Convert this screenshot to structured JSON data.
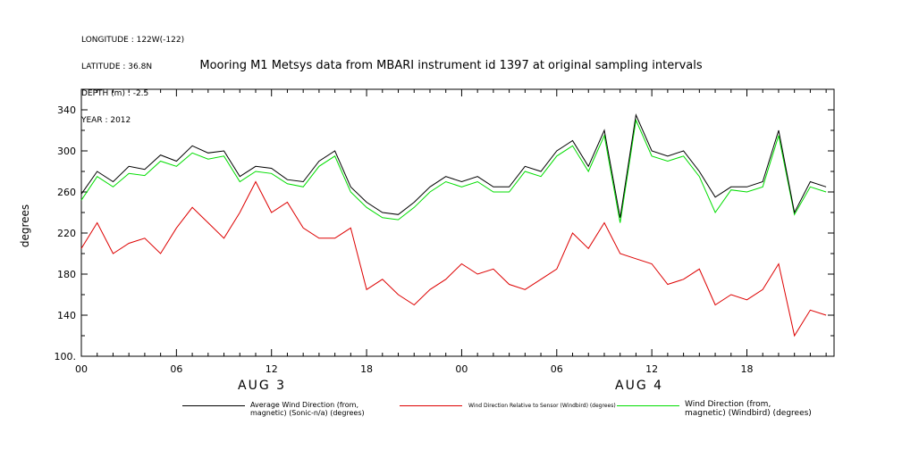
{
  "header": {
    "longitude": "LONGITUDE : 122W(-122)",
    "latitude": "LATITUDE : 36.8N",
    "depth": "DEPTH (m) : -2.5",
    "year": "YEAR : 2012"
  },
  "colors": {
    "s1": "#000000",
    "s2": "#dd0000",
    "s3": "#00dd00"
  },
  "chart_data": {
    "type": "line",
    "title": "Mooring M1 Metsys data from MBARI instrument id 1397 at original sampling intervals",
    "xlabel": "",
    "ylabel": "degrees",
    "ylim": [
      100,
      360
    ],
    "xlim": [
      "2012-08-03 00:00",
      "2012-08-04 23:30"
    ],
    "y_ticks": [
      "100.",
      "140",
      "180",
      "220",
      "260",
      "300",
      "340"
    ],
    "x_ticks": [
      "00",
      "06",
      "12",
      "18",
      "00",
      "06",
      "12",
      "18"
    ],
    "day_labels": [
      "AUG  3",
      "AUG  4"
    ],
    "grid": false,
    "legend": "bottom",
    "x": [
      "2012-08-03 00:00",
      "2012-08-03 01:00",
      "2012-08-03 02:00",
      "2012-08-03 03:00",
      "2012-08-03 04:00",
      "2012-08-03 05:00",
      "2012-08-03 06:00",
      "2012-08-03 07:00",
      "2012-08-03 08:00",
      "2012-08-03 09:00",
      "2012-08-03 10:00",
      "2012-08-03 11:00",
      "2012-08-03 12:00",
      "2012-08-03 13:00",
      "2012-08-03 14:00",
      "2012-08-03 15:00",
      "2012-08-03 16:00",
      "2012-08-03 17:00",
      "2012-08-03 18:00",
      "2012-08-03 19:00",
      "2012-08-03 20:00",
      "2012-08-03 21:00",
      "2012-08-03 22:00",
      "2012-08-03 23:00",
      "2012-08-04 00:00",
      "2012-08-04 01:00",
      "2012-08-04 02:00",
      "2012-08-04 03:00",
      "2012-08-04 04:00",
      "2012-08-04 05:00",
      "2012-08-04 06:00",
      "2012-08-04 07:00",
      "2012-08-04 08:00",
      "2012-08-04 09:00",
      "2012-08-04 10:00",
      "2012-08-04 11:00",
      "2012-08-04 12:00",
      "2012-08-04 13:00",
      "2012-08-04 14:00",
      "2012-08-04 15:00",
      "2012-08-04 16:00",
      "2012-08-04 17:00",
      "2012-08-04 18:00",
      "2012-08-04 19:00",
      "2012-08-04 20:00",
      "2012-08-04 21:00",
      "2012-08-04 22:00",
      "2012-08-04 23:00"
    ],
    "series": [
      {
        "name": "Average Wind Direction (from, magnetic) (Sonic-n/a) (degrees)",
        "values": [
          258,
          280,
          270,
          285,
          282,
          296,
          290,
          305,
          298,
          300,
          275,
          285,
          283,
          272,
          270,
          290,
          300,
          265,
          250,
          240,
          238,
          250,
          265,
          275,
          270,
          275,
          265,
          265,
          285,
          280,
          300,
          310,
          285,
          320,
          235,
          335,
          300,
          295,
          300,
          280,
          255,
          265,
          265,
          270,
          320,
          240,
          270,
          265
        ]
      },
      {
        "name": "Wind Direction Relative to Sensor (Windbird) (degrees)",
        "values": [
          205,
          230,
          200,
          210,
          215,
          200,
          225,
          245,
          230,
          215,
          240,
          270,
          240,
          250,
          225,
          215,
          215,
          225,
          165,
          175,
          160,
          150,
          165,
          175,
          190,
          180,
          185,
          170,
          165,
          175,
          185,
          220,
          205,
          230,
          200,
          195,
          190,
          170,
          175,
          185,
          150,
          160,
          155,
          165,
          190,
          120,
          145,
          140
        ]
      },
      {
        "name": "Wind Direction (from, magnetic) (Windbird) (degrees)",
        "values": [
          252,
          275,
          265,
          278,
          276,
          290,
          285,
          298,
          292,
          295,
          270,
          280,
          278,
          268,
          265,
          285,
          295,
          260,
          245,
          235,
          233,
          245,
          260,
          270,
          265,
          270,
          260,
          260,
          280,
          275,
          295,
          305,
          280,
          315,
          230,
          330,
          295,
          290,
          295,
          275,
          240,
          262,
          260,
          265,
          315,
          238,
          265,
          260
        ]
      }
    ]
  },
  "legend": {
    "s1_line1": "Average Wind Direction (from,",
    "s1_line2": "magnetic) (Sonic-n/a) (degrees)",
    "s2": "Wind Direction Relative to Sensor (Windbird) (degrees)",
    "s3_line1": "Wind Direction (from,",
    "s3_line2": "magnetic) (Windbird) (degrees)"
  }
}
